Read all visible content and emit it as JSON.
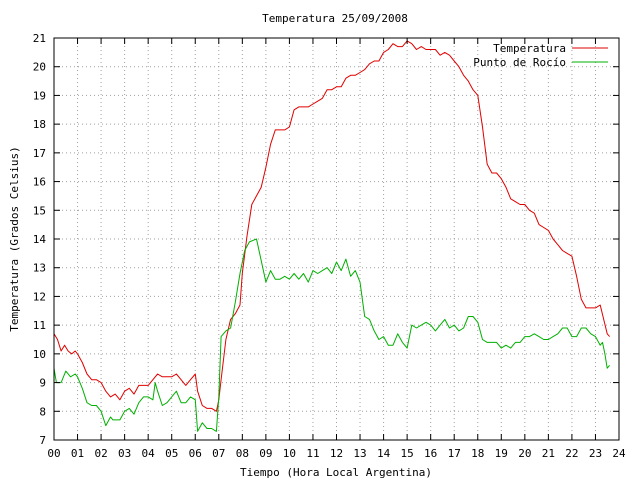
{
  "chart_data": {
    "type": "line",
    "title": "Temperatura 25/09/2008",
    "xlabel": "Tiempo (Hora Local Argentina)",
    "ylabel": "Temperatura (Grados Celsius)",
    "xlim": [
      0,
      24
    ],
    "ylim": [
      7,
      21
    ],
    "x_tick_labels": [
      "00",
      "01",
      "02",
      "03",
      "04",
      "05",
      "06",
      "07",
      "08",
      "09",
      "10",
      "11",
      "12",
      "13",
      "14",
      "15",
      "16",
      "17",
      "18",
      "19",
      "20",
      "21",
      "22",
      "23",
      "24"
    ],
    "y_tick_labels": [
      "7",
      "8",
      "9",
      "10",
      "11",
      "12",
      "13",
      "14",
      "15",
      "16",
      "17",
      "18",
      "19",
      "20",
      "21"
    ],
    "grid": true,
    "legend_position": "top-right",
    "series": [
      {
        "name": "Temperatura",
        "color": "#e00000",
        "x": [
          0.0,
          0.15,
          0.3,
          0.45,
          0.6,
          0.75,
          0.9,
          1.0,
          1.2,
          1.4,
          1.6,
          1.8,
          2.0,
          2.2,
          2.4,
          2.6,
          2.8,
          3.0,
          3.2,
          3.4,
          3.6,
          3.8,
          4.0,
          4.2,
          4.4,
          4.6,
          4.8,
          5.0,
          5.2,
          5.4,
          5.6,
          5.8,
          6.0,
          6.1,
          6.3,
          6.5,
          6.7,
          6.9,
          7.0,
          7.1,
          7.3,
          7.5,
          7.7,
          7.9,
          8.0,
          8.2,
          8.4,
          8.6,
          8.8,
          9.0,
          9.2,
          9.4,
          9.6,
          9.8,
          10.0,
          10.2,
          10.4,
          10.6,
          10.8,
          11.0,
          11.2,
          11.4,
          11.6,
          11.8,
          12.0,
          12.2,
          12.4,
          12.6,
          12.8,
          13.0,
          13.2,
          13.4,
          13.6,
          13.8,
          14.0,
          14.2,
          14.4,
          14.6,
          14.8,
          15.0,
          15.2,
          15.4,
          15.6,
          15.8,
          16.0,
          16.2,
          16.4,
          16.6,
          16.8,
          17.0,
          17.2,
          17.4,
          17.6,
          17.8,
          18.0,
          18.2,
          18.4,
          18.6,
          18.8,
          19.0,
          19.2,
          19.4,
          19.6,
          19.8,
          20.0,
          20.2,
          20.4,
          20.6,
          20.8,
          21.0,
          21.2,
          21.4,
          21.6,
          21.8,
          22.0,
          22.2,
          22.4,
          22.6,
          22.8,
          23.0,
          23.2,
          23.35,
          23.5,
          23.6
        ],
        "y": [
          10.7,
          10.5,
          10.1,
          10.3,
          10.1,
          10.0,
          10.1,
          10.0,
          9.7,
          9.3,
          9.1,
          9.1,
          9.0,
          8.7,
          8.5,
          8.6,
          8.4,
          8.7,
          8.8,
          8.6,
          8.9,
          8.9,
          8.9,
          9.1,
          9.3,
          9.2,
          9.2,
          9.2,
          9.3,
          9.1,
          8.9,
          9.1,
          9.3,
          8.7,
          8.2,
          8.1,
          8.1,
          8.0,
          8.4,
          9.1,
          10.5,
          11.2,
          11.4,
          11.7,
          12.8,
          14.1,
          15.2,
          15.5,
          15.8,
          16.5,
          17.3,
          17.8,
          17.8,
          17.8,
          17.9,
          18.5,
          18.6,
          18.6,
          18.6,
          18.7,
          18.8,
          18.9,
          19.2,
          19.2,
          19.3,
          19.3,
          19.6,
          19.7,
          19.7,
          19.8,
          19.9,
          20.1,
          20.2,
          20.2,
          20.5,
          20.6,
          20.8,
          20.7,
          20.7,
          20.9,
          20.8,
          20.6,
          20.7,
          20.6,
          20.6,
          20.6,
          20.4,
          20.5,
          20.4,
          20.2,
          20.0,
          19.7,
          19.5,
          19.2,
          19.0,
          17.9,
          16.6,
          16.3,
          16.3,
          16.1,
          15.8,
          15.4,
          15.3,
          15.2,
          15.2,
          15.0,
          14.9,
          14.5,
          14.4,
          14.3,
          14.0,
          13.8,
          13.6,
          13.5,
          13.4,
          12.7,
          11.9,
          11.6,
          11.6,
          11.6,
          11.7,
          11.2,
          10.7,
          10.6
        ]
      },
      {
        "name": "Punto de Rocío",
        "color": "#00b000",
        "x": [
          0.0,
          0.1,
          0.3,
          0.5,
          0.7,
          0.9,
          1.0,
          1.2,
          1.4,
          1.6,
          1.8,
          2.0,
          2.2,
          2.4,
          2.5,
          2.6,
          2.8,
          3.0,
          3.2,
          3.4,
          3.6,
          3.8,
          4.0,
          4.2,
          4.3,
          4.4,
          4.6,
          4.8,
          5.0,
          5.2,
          5.4,
          5.6,
          5.8,
          6.0,
          6.1,
          6.3,
          6.5,
          6.7,
          6.9,
          7.0,
          7.1,
          7.3,
          7.5,
          7.7,
          7.9,
          8.1,
          8.3,
          8.6,
          9.0,
          9.2,
          9.4,
          9.6,
          9.8,
          10.0,
          10.2,
          10.4,
          10.6,
          10.8,
          11.0,
          11.2,
          11.4,
          11.6,
          11.8,
          12.0,
          12.2,
          12.4,
          12.6,
          12.8,
          13.0,
          13.2,
          13.4,
          13.6,
          13.8,
          14.0,
          14.2,
          14.4,
          14.6,
          14.8,
          15.0,
          15.2,
          15.4,
          15.6,
          15.8,
          16.0,
          16.2,
          16.4,
          16.6,
          16.8,
          17.0,
          17.2,
          17.4,
          17.6,
          17.8,
          18.0,
          18.2,
          18.4,
          18.6,
          18.8,
          19.0,
          19.2,
          19.4,
          19.6,
          19.8,
          20.0,
          20.2,
          20.4,
          20.6,
          20.8,
          21.0,
          21.2,
          21.4,
          21.6,
          21.8,
          22.0,
          22.2,
          22.4,
          22.6,
          22.8,
          23.0,
          23.2,
          23.3,
          23.4,
          23.5,
          23.6
        ],
        "y": [
          9.5,
          9.0,
          9.0,
          9.4,
          9.2,
          9.3,
          9.2,
          8.8,
          8.3,
          8.2,
          8.2,
          8.0,
          7.5,
          7.8,
          7.7,
          7.7,
          7.7,
          8.0,
          8.1,
          7.9,
          8.3,
          8.5,
          8.5,
          8.4,
          9.0,
          8.7,
          8.2,
          8.3,
          8.5,
          8.7,
          8.3,
          8.3,
          8.5,
          8.4,
          7.3,
          7.6,
          7.4,
          7.4,
          7.3,
          8.5,
          10.6,
          10.8,
          10.9,
          11.8,
          12.8,
          13.6,
          13.9,
          14.0,
          12.5,
          12.9,
          12.6,
          12.6,
          12.7,
          12.6,
          12.8,
          12.6,
          12.8,
          12.5,
          12.9,
          12.8,
          12.9,
          13.0,
          12.8,
          13.2,
          12.9,
          13.3,
          12.7,
          12.9,
          12.5,
          11.3,
          11.2,
          10.8,
          10.5,
          10.6,
          10.3,
          10.3,
          10.7,
          10.4,
          10.2,
          11.0,
          10.9,
          11.0,
          11.1,
          11.0,
          10.8,
          11.0,
          11.2,
          10.9,
          11.0,
          10.8,
          10.9,
          11.3,
          11.3,
          11.1,
          10.5,
          10.4,
          10.4,
          10.4,
          10.2,
          10.3,
          10.2,
          10.4,
          10.4,
          10.6,
          10.6,
          10.7,
          10.6,
          10.5,
          10.5,
          10.6,
          10.7,
          10.9,
          10.9,
          10.6,
          10.6,
          10.9,
          10.9,
          10.7,
          10.6,
          10.3,
          10.4,
          10.0,
          9.5,
          9.6
        ]
      }
    ]
  }
}
